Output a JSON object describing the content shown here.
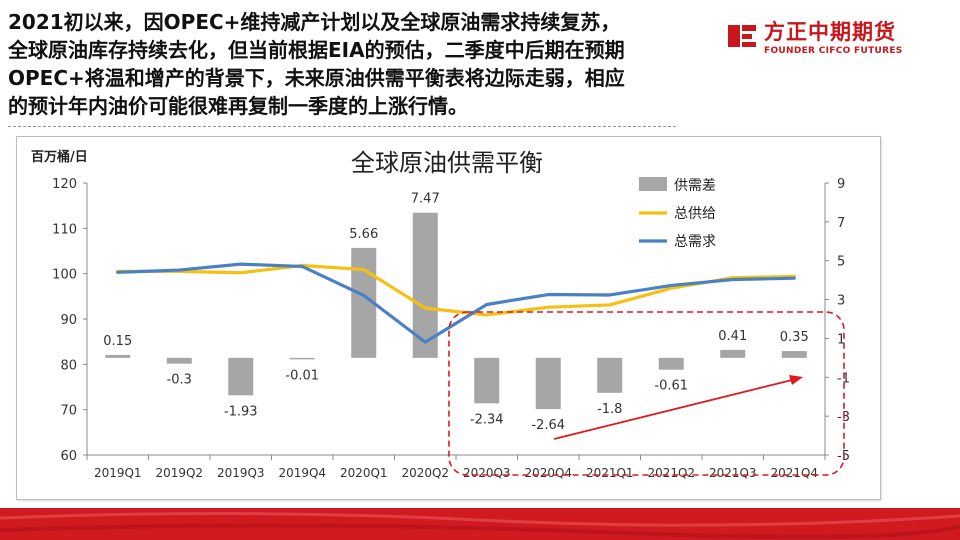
{
  "slide": {
    "headline_lines": [
      "2021初以来，因OPEC+维持减产计划以及全球原油需求持续复苏，",
      "全球原油库存持续去化，但当前根据EIA的预估，二季度中后期在预期",
      "OPEC+将温和增产的背景下，未来原油供需平衡表将边际走弱，相应",
      "的预计年内油价可能很难再复制一季度的上涨行情。"
    ],
    "logo": {
      "cn": "方正中期期货",
      "en": "FOUNDER CIFCO FUTURES"
    }
  },
  "colors": {
    "brand_red": "#c8161d",
    "bar": "#a6a6a6",
    "supply": "#f5c012",
    "demand": "#4a80c4",
    "annotation": "#e0191e"
  },
  "chart_data": {
    "type": "bar+line",
    "title": "全球原油供需平衡",
    "ylabel": "百万桶/日",
    "categories": [
      "2019Q1",
      "2019Q2",
      "2019Q3",
      "2019Q4",
      "2020Q1",
      "2020Q2",
      "2020Q3",
      "2020Q4",
      "2021Q1",
      "2021Q2",
      "2021Q3",
      "2021Q4"
    ],
    "left_axis": {
      "range": [
        60,
        120
      ],
      "ticks": [
        60,
        70,
        80,
        90,
        100,
        110,
        120
      ]
    },
    "right_axis": {
      "range": [
        -5,
        9
      ],
      "ticks": [
        -5,
        -3,
        -1,
        1,
        3,
        5,
        7,
        9
      ]
    },
    "series": [
      {
        "name": "供需差",
        "type": "bar",
        "axis": "right",
        "values": [
          0.15,
          -0.3,
          -1.93,
          -0.01,
          5.66,
          7.47,
          -2.34,
          -2.64,
          -1.8,
          -0.61,
          0.41,
          0.35
        ],
        "labels": [
          "0.15",
          "-0.3",
          "-1.93",
          "-0.01",
          "5.66",
          "7.47",
          "-2.34",
          "-2.64",
          "-1.8",
          "-0.61",
          "0.41",
          "0.35"
        ]
      },
      {
        "name": "总供给",
        "type": "line",
        "axis": "left",
        "values": [
          100.5,
          100.5,
          100.2,
          101.8,
          100.9,
          92.4,
          90.9,
          92.6,
          93.1,
          96.8,
          99.1,
          99.4
        ]
      },
      {
        "name": "总需求",
        "type": "line",
        "axis": "left",
        "values": [
          100.3,
          100.8,
          102.1,
          101.6,
          95.2,
          84.9,
          93.2,
          95.4,
          95.3,
          97.4,
          98.7,
          99.0
        ]
      }
    ],
    "legend_position": "top-right",
    "annotation": "dashed red box around 2020Q3-2021Q4 with upward red arrow"
  }
}
